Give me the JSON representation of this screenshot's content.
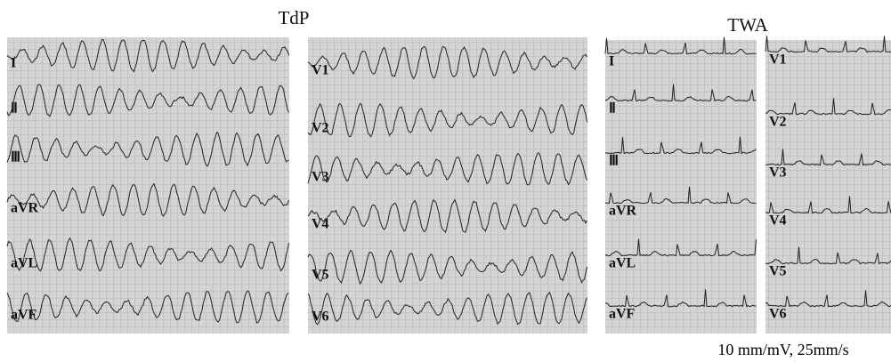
{
  "tdp": {
    "title": "TdP",
    "limb_leads": [
      "I",
      "Ⅱ",
      "Ⅲ",
      "aVR",
      "aVL",
      "aVF"
    ],
    "chest_leads": [
      "V1",
      "V2",
      "V3",
      "V4",
      "V5",
      "V6"
    ]
  },
  "twa": {
    "title": "TWA",
    "limb_leads": [
      "I",
      "Ⅱ",
      "Ⅲ",
      "aVR",
      "aVL",
      "aVF"
    ],
    "chest_leads": [
      "V1",
      "V2",
      "V3",
      "V4",
      "V5",
      "V6"
    ]
  },
  "footnote": "10 mm/mV, 25mm/s"
}
